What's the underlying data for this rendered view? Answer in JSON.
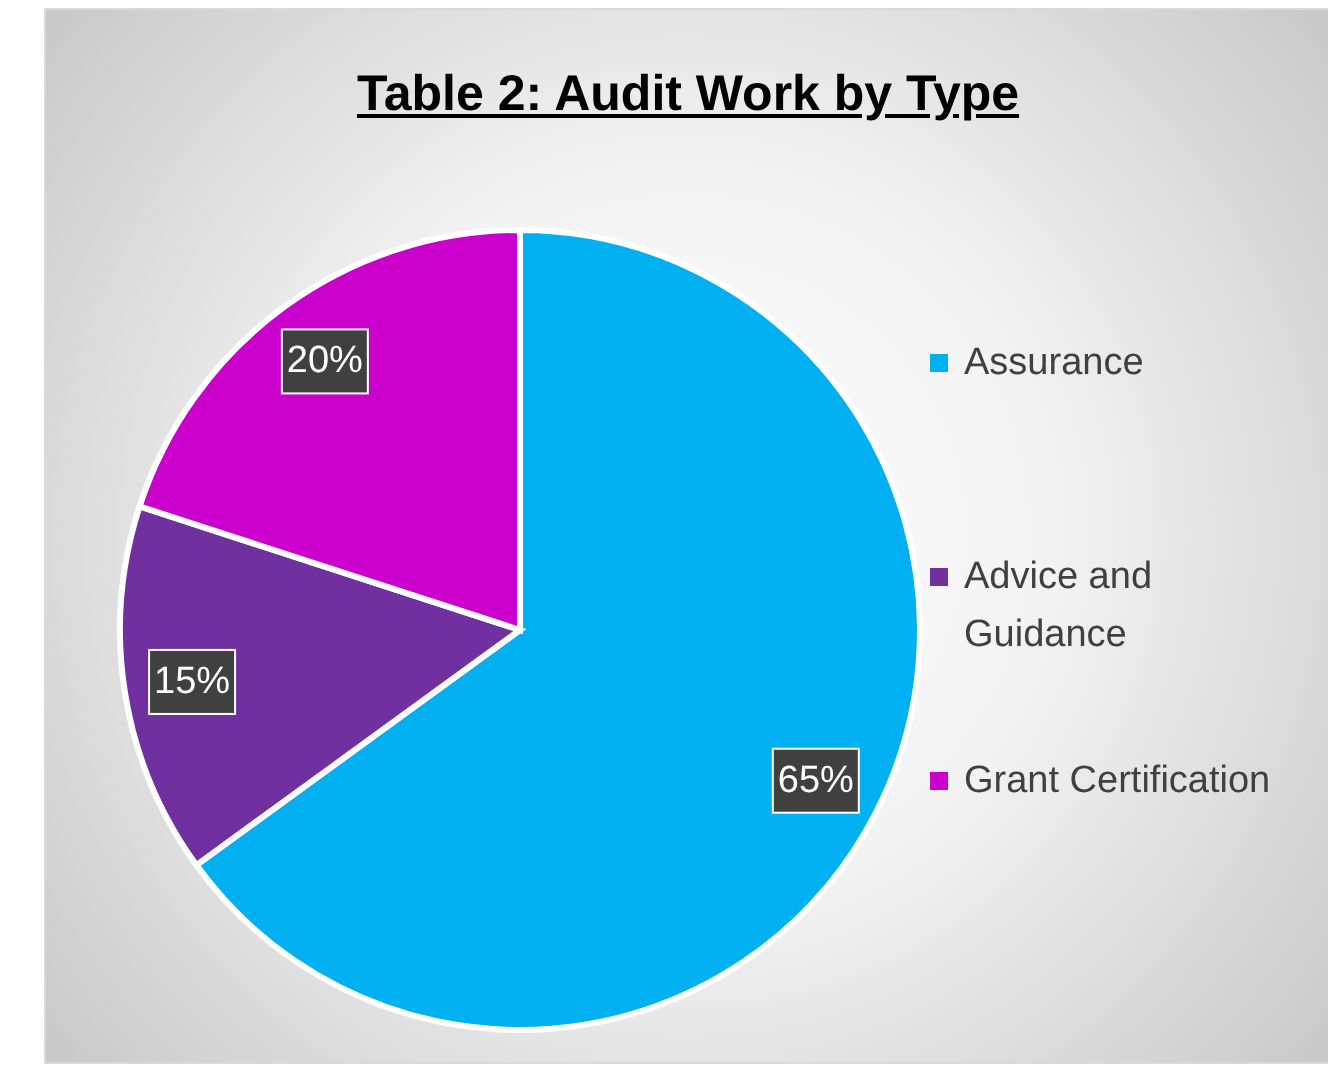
{
  "chart_data": {
    "type": "pie",
    "title": "Table 2: Audit Work by Type",
    "categories": [
      "Assurance",
      "Advice and Guidance",
      "Grant Certification"
    ],
    "values": [
      65,
      15,
      20
    ],
    "colors": [
      "#00b0f0",
      "#7030a0",
      "#cc00cc"
    ],
    "value_labels": [
      "65%",
      "15%",
      "20%"
    ],
    "legend": "right"
  }
}
